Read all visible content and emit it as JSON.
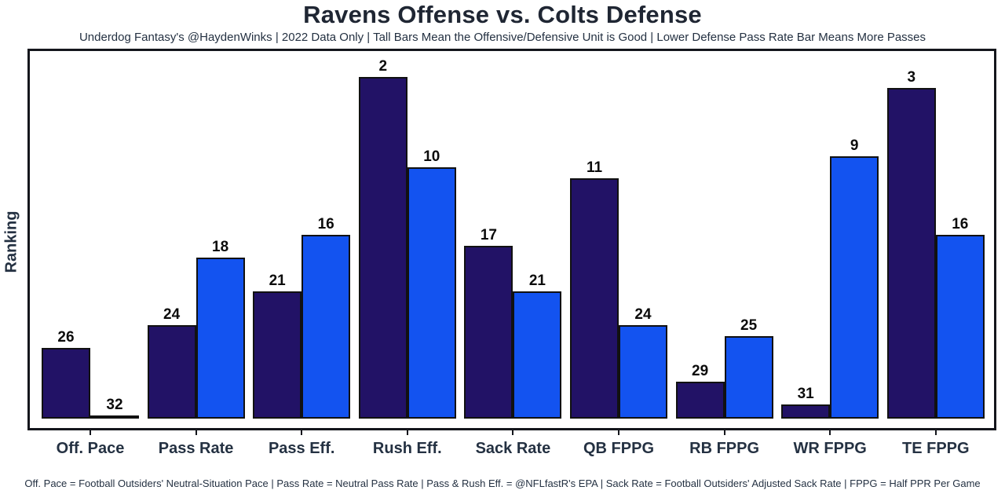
{
  "chart_data": {
    "type": "bar",
    "title": "Ravens Offense vs. Colts Defense",
    "subtitle": "Underdog Fantasy's @HaydenWinks | 2022 Data Only | Tall Bars Mean the Offensive/Defensive Unit is Good | Lower Defense Pass Rate Bar Means More Passes",
    "footnote": "Off. Pace = Football Outsiders' Neutral-Situation Pace | Pass Rate = Neutral Pass Rate | Pass & Rush Eff. = @NFLfastR's EPA | Sack Rate = Football Outsiders' Adjusted Sack Rate | FPPG = Half PPR Per Game",
    "ylabel": "Ranking",
    "xlabel": "",
    "categories": [
      "Off. Pace",
      "Pass Rate",
      "Pass Eff.",
      "Rush Eff.",
      "Sack Rate",
      "QB FPPG",
      "RB FPPG",
      "WR FPPG",
      "TE FPPG"
    ],
    "series": [
      {
        "name": "Ravens Offense",
        "color": "#221266",
        "values": [
          26,
          24,
          21,
          2,
          17,
          11,
          29,
          31,
          3
        ]
      },
      {
        "name": "Colts Defense",
        "color": "#1353F0",
        "values": [
          32,
          18,
          16,
          10,
          21,
          24,
          25,
          9,
          16
        ]
      }
    ],
    "rank_scale": {
      "best": 1,
      "worst": 32,
      "height_rule": "bar_height proportional to (32 - rank); rank 32 renders as a flat line"
    },
    "legend_position": "none",
    "grid": false,
    "value_labels": "above bars",
    "colors": {
      "bar_outline": "#111111",
      "frame": "#14161c",
      "axis_text": "#243142",
      "title_text": "#1f2633",
      "value_label_text": "#0b0b0b",
      "background": "#ffffff"
    }
  }
}
